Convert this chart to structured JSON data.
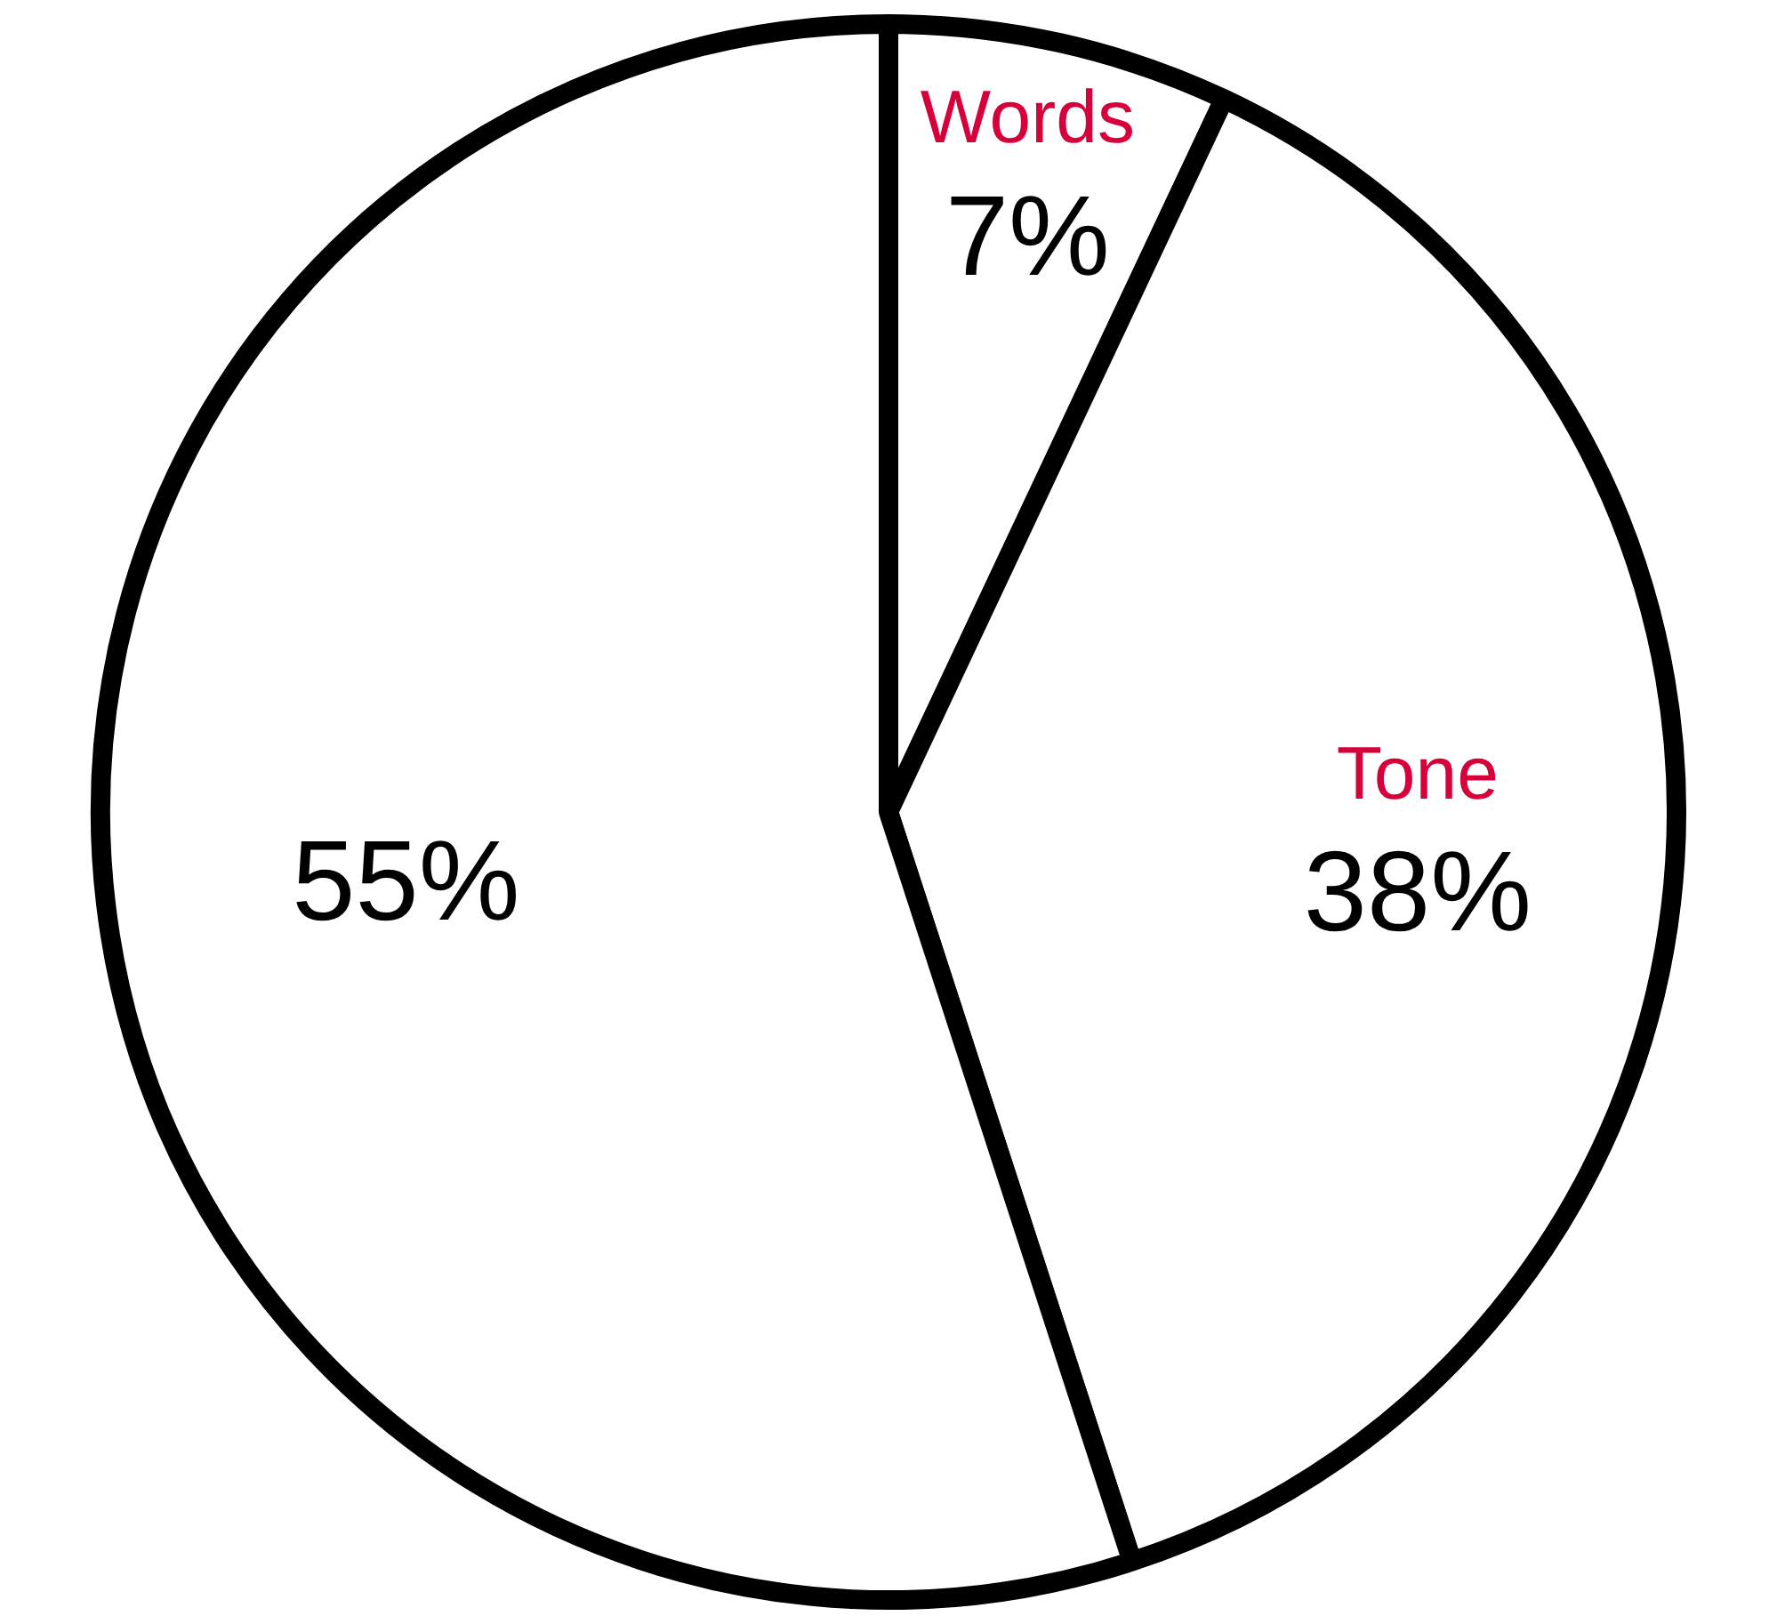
{
  "chart_data": {
    "type": "pie",
    "categories": [
      "Words",
      "Tone",
      null
    ],
    "values": [
      7,
      38,
      55
    ],
    "colors": [
      "#ffffff",
      "#ffffff",
      "#ffffff"
    ],
    "value_labels": [
      "7%",
      "38%",
      "55%"
    ],
    "legend": false
  }
}
